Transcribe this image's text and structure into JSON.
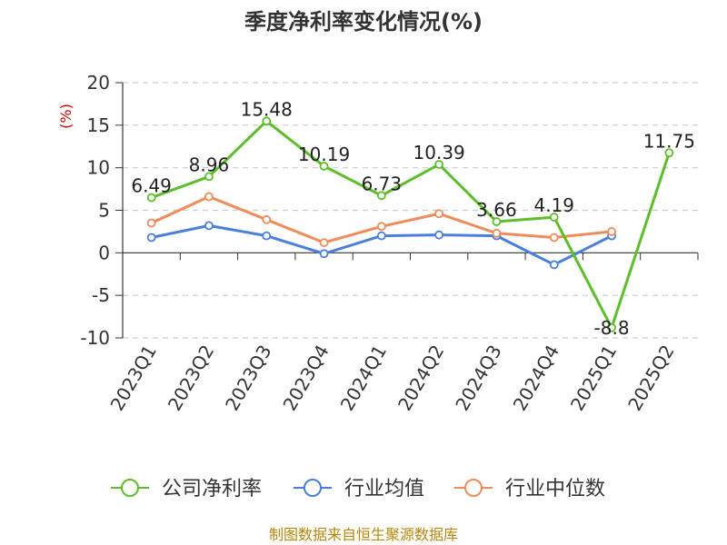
{
  "chart_data": {
    "type": "line",
    "title": "季度净利率变化情况(%)",
    "ylabel": "(%)",
    "xlabel": "",
    "ylim": [
      -10,
      20
    ],
    "yticks": [
      20,
      15,
      10,
      5,
      0,
      -5,
      -10
    ],
    "grid": true,
    "legend_position": "bottom",
    "categories": [
      "2023Q1",
      "2023Q2",
      "2023Q3",
      "2023Q4",
      "2024Q1",
      "2024Q2",
      "2024Q3",
      "2024Q4",
      "2025Q1",
      "2025Q2"
    ],
    "series": [
      {
        "name": "公司净利率",
        "color": "#5cbf2a",
        "values": [
          6.49,
          8.96,
          15.48,
          10.19,
          6.73,
          10.39,
          3.66,
          4.19,
          -8.8,
          11.75
        ],
        "labels": [
          "6.49",
          "8.96",
          "15.48",
          "10.19",
          "6.73",
          "10.39",
          "3.66",
          "4.19",
          "-8.8",
          "11.75"
        ]
      },
      {
        "name": "行业均值",
        "color": "#4a7fdb",
        "values": [
          1.8,
          3.2,
          2.0,
          -0.1,
          2.0,
          2.1,
          2.0,
          -1.4,
          2.0,
          null
        ]
      },
      {
        "name": "行业中位数",
        "color": "#f08c5a",
        "values": [
          3.5,
          6.6,
          3.9,
          1.2,
          3.1,
          4.6,
          2.3,
          1.8,
          2.5,
          null
        ]
      }
    ]
  },
  "source": "制图数据来自恒生聚源数据库"
}
